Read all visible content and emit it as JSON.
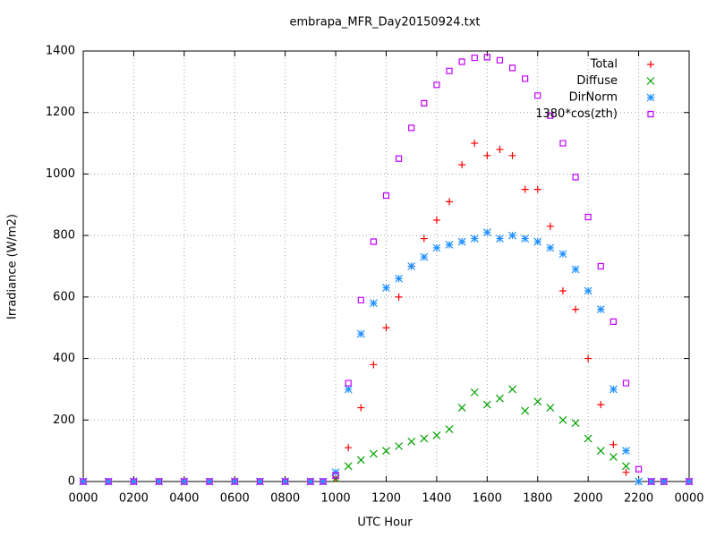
{
  "chart_data": {
    "type": "scatter",
    "title": "embrapa_MFR_Day20150924.txt",
    "x_label": "UTC Hour",
    "y_label": "Irradiance (W/m2)",
    "xlim": [
      0,
      24
    ],
    "ylim": [
      0,
      1400
    ],
    "xticks": [
      {
        "value": 0,
        "label": "0000"
      },
      {
        "value": 2,
        "label": "0200"
      },
      {
        "value": 4,
        "label": "0400"
      },
      {
        "value": 6,
        "label": "0600"
      },
      {
        "value": 8,
        "label": "0800"
      },
      {
        "value": 10,
        "label": "1000"
      },
      {
        "value": 12,
        "label": "1200"
      },
      {
        "value": 14,
        "label": "1400"
      },
      {
        "value": 16,
        "label": "1600"
      },
      {
        "value": 18,
        "label": "1800"
      },
      {
        "value": 20,
        "label": "2000"
      },
      {
        "value": 22,
        "label": "2200"
      },
      {
        "value": 24,
        "label": "0000"
      }
    ],
    "yticks": [
      0,
      200,
      400,
      600,
      800,
      1000,
      1200,
      1400
    ],
    "grid": true,
    "legend": "top-right",
    "x": [
      0,
      1,
      2,
      3,
      4,
      5,
      6,
      7,
      8,
      9,
      9.5,
      10,
      10.5,
      11,
      11.5,
      12,
      12.5,
      13,
      13.5,
      14,
      14.5,
      15,
      15.5,
      16,
      16.5,
      17,
      17.5,
      18,
      18.5,
      19,
      19.5,
      20,
      20.5,
      21,
      21.5,
      22,
      22.5,
      23,
      24
    ],
    "series": [
      {
        "name": "Total",
        "color": "#ff0000",
        "marker": "plus",
        "values": [
          0,
          0,
          0,
          0,
          0,
          0,
          0,
          0,
          0,
          0,
          0,
          10,
          110,
          240,
          380,
          500,
          600,
          700,
          790,
          850,
          910,
          1030,
          1100,
          1060,
          1080,
          1060,
          950,
          950,
          830,
          620,
          560,
          400,
          250,
          120,
          30,
          0,
          0,
          0,
          0
        ]
      },
      {
        "name": "Diffuse",
        "color": "#00a000",
        "marker": "cross",
        "values": [
          0,
          0,
          0,
          0,
          0,
          0,
          0,
          0,
          0,
          0,
          0,
          10,
          50,
          70,
          90,
          100,
          115,
          130,
          140,
          150,
          170,
          240,
          290,
          250,
          270,
          300,
          230,
          260,
          240,
          200,
          190,
          140,
          100,
          80,
          50,
          0,
          0,
          0,
          0
        ]
      },
      {
        "name": "DirNorm",
        "color": "#1e90ff",
        "marker": "star",
        "values": [
          0,
          0,
          0,
          0,
          0,
          0,
          0,
          0,
          0,
          0,
          0,
          30,
          300,
          480,
          580,
          630,
          660,
          700,
          730,
          760,
          770,
          780,
          790,
          810,
          790,
          800,
          790,
          780,
          760,
          740,
          690,
          620,
          560,
          300,
          100,
          0,
          0,
          0,
          0
        ]
      },
      {
        "name": "1380*cos(zth)",
        "color": "#c000ff",
        "marker": "square",
        "values": [
          0,
          0,
          0,
          0,
          0,
          0,
          0,
          0,
          0,
          0,
          0,
          20,
          320,
          590,
          780,
          930,
          1050,
          1150,
          1230,
          1290,
          1335,
          1365,
          1378,
          1380,
          1370,
          1345,
          1310,
          1255,
          1190,
          1100,
          990,
          860,
          700,
          520,
          320,
          40,
          0,
          0,
          0
        ]
      }
    ]
  }
}
